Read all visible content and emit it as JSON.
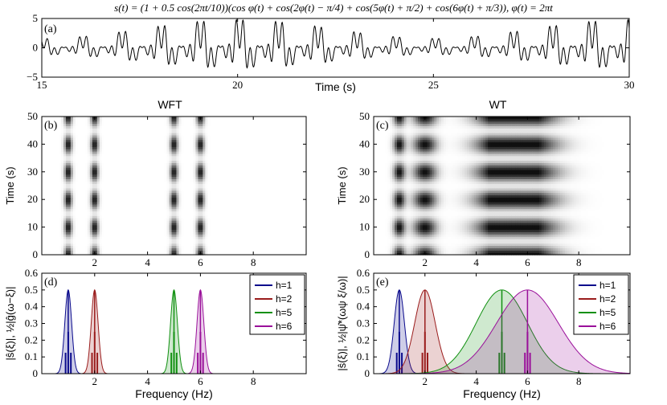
{
  "equation": "s(t) = (1 + 0.5 cos(2πt/10))(cos φ(t) + cos(2φ(t) − π/4) + cos(5φ(t) + π/2) + cos(6φ(t) + π/3)),  φ(t) = 2πt",
  "colors": {
    "h1": "#0a0a8c",
    "h2": "#9a1c1c",
    "h5": "#109010",
    "h6": "#9a109a",
    "axis": "#000000"
  },
  "chart_data": [
    {
      "id": "a",
      "panel_label": "(a)",
      "type": "line",
      "title": "",
      "xlabel": "Time (s)",
      "ylabel": "",
      "xlim": [
        15,
        30
      ],
      "ylim": [
        -5,
        5
      ],
      "xticks": [
        "15",
        "20",
        "25",
        "30"
      ],
      "yticks": [
        "5",
        "0",
        "−5"
      ],
      "x_step": 0.01,
      "signal": {
        "amplitude_modulation": {
          "base": 1,
          "depth": 0.5,
          "period_s": 10
        },
        "components": [
          {
            "harmonic": 1,
            "phase": 0
          },
          {
            "harmonic": 2,
            "phase": -0.7854
          },
          {
            "harmonic": 5,
            "phase": 1.5708
          },
          {
            "harmonic": 6,
            "phase": 1.0472
          }
        ]
      }
    },
    {
      "id": "b",
      "panel_label": "(b)",
      "type": "heatmap",
      "title": "WFT",
      "xlabel": "",
      "ylabel": "Time (s)",
      "xlim": [
        0,
        10
      ],
      "ylim": [
        0,
        50
      ],
      "xticks": [
        "2",
        "4",
        "6",
        "8"
      ],
      "yticks": [
        "50",
        "40",
        "30",
        "20",
        "10",
        "0"
      ],
      "ridges": [
        {
          "freq": 1,
          "width": 0.14
        },
        {
          "freq": 2,
          "width": 0.14
        },
        {
          "freq": 5,
          "width": 0.14
        },
        {
          "freq": 6,
          "width": 0.14
        }
      ],
      "time_modulation_period_s": 10
    },
    {
      "id": "c",
      "panel_label": "(c)",
      "type": "heatmap",
      "title": "WT",
      "xlabel": "",
      "ylabel": "Time (s)",
      "xlim": [
        0,
        10
      ],
      "ylim": [
        0,
        50
      ],
      "xticks": [
        "2",
        "4",
        "6",
        "8"
      ],
      "yticks": [
        "50",
        "40",
        "30",
        "20",
        "10",
        "0"
      ],
      "ridges": [
        {
          "freq": 1,
          "width": 0.22
        },
        {
          "freq": 2,
          "width": 0.44
        },
        {
          "freq": 5,
          "width": 1.0
        },
        {
          "freq": 6,
          "width": 1.2
        }
      ],
      "time_modulation_period_s": 10
    },
    {
      "id": "d",
      "panel_label": "(d)",
      "type": "area",
      "title": "",
      "xlabel": "Frequency (Hz)",
      "ylabel": "|ŝ(ξ)|, ½|ĝ(ω−ξ)|",
      "xlim": [
        0,
        10
      ],
      "ylim": [
        0,
        0.6
      ],
      "xticks": [
        "2",
        "4",
        "6",
        "8"
      ],
      "yticks": [
        "0.6",
        "0.5",
        "0.4",
        "0.3",
        "0.2",
        "0.1",
        "0"
      ],
      "legend_position": "top-right",
      "series": [
        {
          "name": "h=1",
          "key": "h1",
          "center": 1,
          "peak": 0.5,
          "sigma": 0.13
        },
        {
          "name": "h=2",
          "key": "h2",
          "center": 2,
          "peak": 0.5,
          "sigma": 0.13
        },
        {
          "name": "h=5",
          "key": "h5",
          "center": 5,
          "peak": 0.5,
          "sigma": 0.13
        },
        {
          "name": "h=6",
          "key": "h6",
          "center": 6,
          "peak": 0.5,
          "sigma": 0.13
        }
      ],
      "spectral_lines": {
        "offsets": [
          -0.1,
          0,
          0.1
        ],
        "heights": [
          0.125,
          0.25,
          0.125
        ]
      }
    },
    {
      "id": "e",
      "panel_label": "(e)",
      "type": "area",
      "title": "",
      "xlabel": "Frequency (Hz)",
      "ylabel": "|ŝ(ξ)|, ½|ψ̂*(ωψ ξ/ω)|",
      "xlim": [
        0,
        10
      ],
      "ylim": [
        0,
        0.6
      ],
      "xticks": [
        "2",
        "4",
        "6",
        "8"
      ],
      "yticks": [
        "0.6",
        "0.5",
        "0.4",
        "0.3",
        "0.2",
        "0.1",
        "0"
      ],
      "legend_position": "top-right",
      "series": [
        {
          "name": "h=1",
          "key": "h1",
          "center": 1,
          "peak": 0.5,
          "sigma": 0.2
        },
        {
          "name": "h=2",
          "key": "h2",
          "center": 2,
          "peak": 0.5,
          "sigma": 0.4
        },
        {
          "name": "h=5",
          "key": "h5",
          "center": 5,
          "peak": 0.5,
          "sigma": 1.0
        },
        {
          "name": "h=6",
          "key": "h6",
          "center": 6,
          "peak": 0.5,
          "sigma": 1.2
        }
      ],
      "spectral_lines": {
        "offsets": [
          -0.1,
          0,
          0.1
        ],
        "heights": [
          0.125,
          0.25,
          0.125
        ]
      }
    }
  ]
}
